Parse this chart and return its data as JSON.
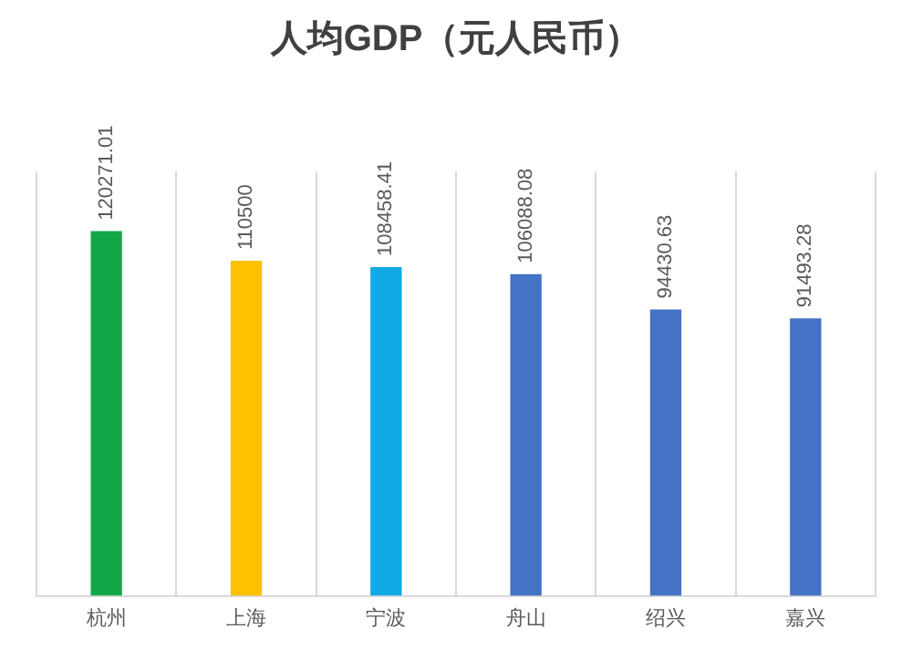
{
  "chart_data": {
    "type": "bar",
    "title": "人均GDP（元人民币）",
    "categories": [
      "杭州",
      "上海",
      "宁波",
      "舟山",
      "绍兴",
      "嘉兴"
    ],
    "values": [
      120271.01,
      110500,
      108458.41,
      106088.08,
      94430.63,
      91493.28
    ],
    "colors": [
      "#12a84a",
      "#ffc000",
      "#12a9e6",
      "#4472c4",
      "#4472c4",
      "#4472c4"
    ],
    "data_labels": true,
    "grid": "x",
    "tick_labels": "x",
    "legend": false
  }
}
